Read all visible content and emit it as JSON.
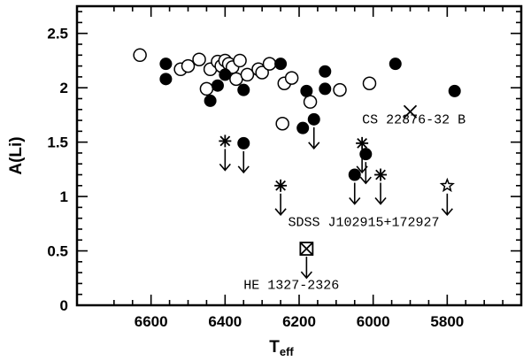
{
  "chart_data": {
    "type": "scatter",
    "xlabel": "T",
    "xlabel_sub": "eff",
    "ylabel": "A(Li)",
    "xlim": [
      6800,
      5600
    ],
    "ylim": [
      0,
      2.75
    ],
    "x_ticks": [
      6600,
      6400,
      6200,
      6000,
      5800
    ],
    "y_ticks": [
      0,
      0.5,
      1,
      1.5,
      2,
      2.5
    ],
    "x_tick_labels": [
      "6600",
      "6400",
      "6200",
      "6000",
      "5800"
    ],
    "y_tick_labels": [
      "0",
      "0.5",
      "1",
      "1.5",
      "2",
      "2.5"
    ],
    "annotations": [
      {
        "text": "CS 22876-32 B",
        "x": 6030,
        "y": 1.67
      },
      {
        "text": "SDSS J102915+172927",
        "x": 6230,
        "y": 0.73
      },
      {
        "text": "HE 1327-2326",
        "x": 6350,
        "y": 0.15
      }
    ],
    "series": [
      {
        "marker": "open-circle",
        "points": [
          {
            "x": 6630,
            "y": 2.3
          },
          {
            "x": 6520,
            "y": 2.17
          },
          {
            "x": 6500,
            "y": 2.2
          },
          {
            "x": 6470,
            "y": 2.26
          },
          {
            "x": 6440,
            "y": 2.17
          },
          {
            "x": 6450,
            "y": 1.99
          },
          {
            "x": 6420,
            "y": 2.24
          },
          {
            "x": 6410,
            "y": 2.2
          },
          {
            "x": 6400,
            "y": 2.25
          },
          {
            "x": 6390,
            "y": 2.22
          },
          {
            "x": 6380,
            "y": 2.19
          },
          {
            "x": 6370,
            "y": 2.08
          },
          {
            "x": 6360,
            "y": 2.25
          },
          {
            "x": 6340,
            "y": 2.12
          },
          {
            "x": 6310,
            "y": 2.17
          },
          {
            "x": 6300,
            "y": 2.14
          },
          {
            "x": 6280,
            "y": 2.22
          },
          {
            "x": 6240,
            "y": 2.04
          },
          {
            "x": 6220,
            "y": 2.09
          },
          {
            "x": 6245,
            "y": 1.67
          },
          {
            "x": 6170,
            "y": 1.87
          },
          {
            "x": 6090,
            "y": 1.98
          },
          {
            "x": 6010,
            "y": 2.04
          }
        ]
      },
      {
        "marker": "filled-circle",
        "points": [
          {
            "x": 6560,
            "y": 2.22
          },
          {
            "x": 6560,
            "y": 2.08
          },
          {
            "x": 6440,
            "y": 1.88
          },
          {
            "x": 6420,
            "y": 2.02
          },
          {
            "x": 6400,
            "y": 2.12
          },
          {
            "x": 6350,
            "y": 1.98
          },
          {
            "x": 6250,
            "y": 2.22
          },
          {
            "x": 6180,
            "y": 1.97
          },
          {
            "x": 6130,
            "y": 1.99
          },
          {
            "x": 6130,
            "y": 2.15
          },
          {
            "x": 5940,
            "y": 2.22
          },
          {
            "x": 5780,
            "y": 1.97
          },
          {
            "x": 6190,
            "y": 1.63
          }
        ]
      },
      {
        "marker": "filled-circle-upper-limit",
        "points": [
          {
            "x": 6350,
            "y": 1.49
          },
          {
            "x": 6160,
            "y": 1.71
          },
          {
            "x": 6050,
            "y": 1.2
          },
          {
            "x": 6020,
            "y": 1.39
          }
        ]
      },
      {
        "marker": "asterisk-upper-limit",
        "points": [
          {
            "x": 6400,
            "y": 1.51
          },
          {
            "x": 6250,
            "y": 1.1
          },
          {
            "x": 6030,
            "y": 1.49
          },
          {
            "x": 5980,
            "y": 1.2
          }
        ]
      },
      {
        "marker": "star-upper-limit",
        "points": [
          {
            "x": 5800,
            "y": 1.1
          }
        ]
      },
      {
        "marker": "boxed-x-upper-limit",
        "points": [
          {
            "x": 6180,
            "y": 0.52
          }
        ]
      },
      {
        "marker": "x-cross",
        "points": [
          {
            "x": 5900,
            "y": 1.78
          }
        ]
      }
    ]
  }
}
